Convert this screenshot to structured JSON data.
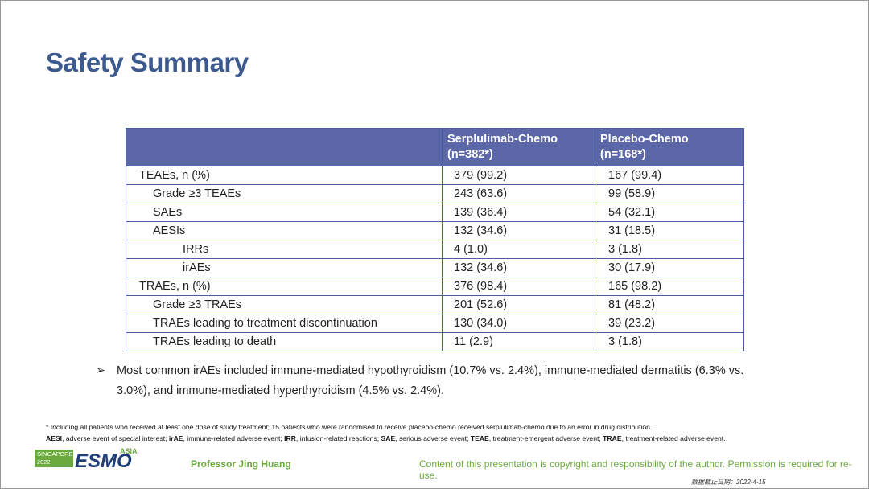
{
  "header": {
    "title": "Safety Summary"
  },
  "table": {
    "columns": [
      {
        "name": "Serplulimab-Chemo",
        "n": "(n=382*)"
      },
      {
        "name": "Placebo-Chemo",
        "n": "(n=168*)"
      }
    ],
    "groups": [
      {
        "label": "TEAEs, n (%)",
        "values": [
          "379 (99.2)",
          "167 (99.4)"
        ],
        "children": [
          {
            "label": "Grade ≥3 TEAEs",
            "values": [
              "243 (63.6)",
              "99 (58.9)"
            ]
          },
          {
            "label": "SAEs",
            "values": [
              "139 (36.4)",
              "54 (32.1)"
            ]
          },
          {
            "label": "AESIs",
            "values": [
              "132 (34.6)",
              "31 (18.5)"
            ],
            "children": [
              {
                "label": "IRRs",
                "values": [
                  "4 (1.0)",
                  "3 (1.8)"
                ]
              },
              {
                "label": "irAEs",
                "values": [
                  "132 (34.6)",
                  "30 (17.9)"
                ]
              }
            ]
          }
        ]
      },
      {
        "label": "TRAEs, n (%)",
        "values": [
          "376 (98.4)",
          "165 (98.2)"
        ],
        "children": [
          {
            "label": "Grade ≥3 TRAEs",
            "values": [
              "201 (52.6)",
              "81 (48.2)"
            ]
          },
          {
            "label": "TRAEs leading to treatment discontinuation",
            "values": [
              "130 (34.0)",
              "39 (23.2)"
            ]
          },
          {
            "label": "TRAEs leading to death",
            "values": [
              "11 (2.9)",
              "3 (1.8)"
            ]
          }
        ]
      }
    ]
  },
  "bullet": "Most common irAEs included immune-mediated hypothyroidism (10.7% vs. 2.4%), immune-mediated dermatitis (6.3% vs. 3.0%), and immune-mediated hyperthyroidism (4.5% vs. 2.4%).",
  "footnotes": {
    "note": "* Including all patients who received at least one dose of study treatment; 15 patients who were randomised to receive placebo-chemo received serplulimab-chemo due to an error in drug distribution.",
    "abbreviations": [
      {
        "abbr": "AESI",
        "def": ", adverse event of special interest; "
      },
      {
        "abbr": "irAE",
        "def": ", immune-related adverse event; "
      },
      {
        "abbr": "IRR",
        "def": ", infusion-related reactions; "
      },
      {
        "abbr": "SAE",
        "def": ", serious adverse event; "
      },
      {
        "abbr": "TEAE",
        "def": ", treatment-emergent adverse event; "
      },
      {
        "abbr": "TRAE",
        "def": ", treatment-related adverse event."
      }
    ]
  },
  "footer": {
    "logo": {
      "place": "SINGAPORE",
      "year": "2022",
      "brand": "ESMO",
      "region": "ASIA"
    },
    "presenter": "Professor Jing Huang",
    "copyright": "Content of this presentation is copyright and responsibility of the author. Permission is required for re-use.",
    "date": "数据截止日期：2022-4-15"
  }
}
